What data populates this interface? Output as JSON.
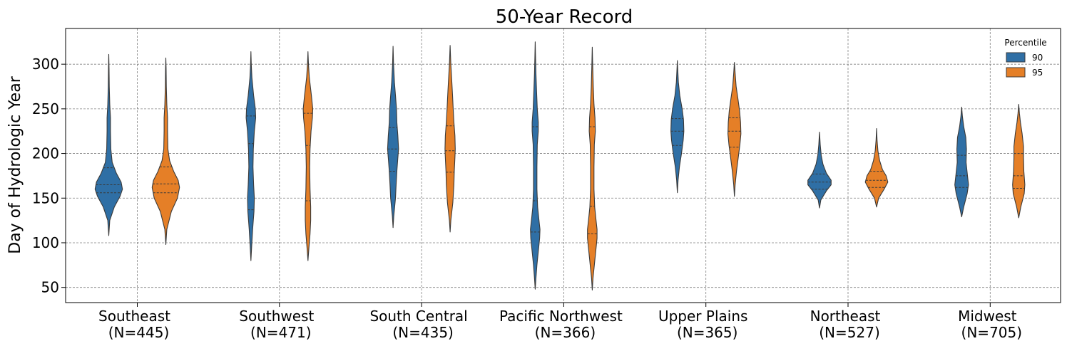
{
  "chart_data": {
    "type": "violin",
    "title": "50-Year Record",
    "xlabel": "",
    "ylabel": "Day of Hydrologic Year",
    "ylim": [
      33,
      340
    ],
    "yticks": [
      50,
      100,
      150,
      200,
      250,
      300
    ],
    "grid": true,
    "legend": {
      "title": "Percentile",
      "placement": "top-right",
      "entries": [
        {
          "label": "90",
          "color": "#2f6fa5"
        },
        {
          "label": "95",
          "color": "#e57f27"
        }
      ]
    },
    "categories": [
      {
        "name": "Southeast",
        "n": "(N=445)"
      },
      {
        "name": "Southwest",
        "n": "(N=471)"
      },
      {
        "name": "South Central",
        "n": "(N=435)"
      },
      {
        "name": "Pacific Northwest",
        "n": "(N=366)"
      },
      {
        "name": "Upper Plains",
        "n": "(N=365)"
      },
      {
        "name": "Northeast",
        "n": "(N=527)"
      },
      {
        "name": "Midwest",
        "n": "(N=705)"
      }
    ],
    "series": [
      {
        "name": "90",
        "color": "#2f6fa5",
        "violins": [
          {
            "min": 108,
            "max": 311,
            "quartiles": [
              156,
              165,
              184
            ],
            "profile": [
              [
                108,
                0
              ],
              [
                125,
                0.03
              ],
              [
                140,
                0.16
              ],
              [
                152,
                0.33
              ],
              [
                160,
                0.4
              ],
              [
                168,
                0.36
              ],
              [
                178,
                0.22
              ],
              [
                190,
                0.1
              ],
              [
                205,
                0.06
              ],
              [
                225,
                0.05
              ],
              [
                240,
                0.05
              ],
              [
                255,
                0.03
              ],
              [
                275,
                0.015
              ],
              [
                295,
                0.008
              ],
              [
                311,
                0
              ]
            ]
          },
          {
            "min": 80,
            "max": 314,
            "quartiles": [
              137,
              211,
              242
            ],
            "profile": [
              [
                80,
                0
              ],
              [
                95,
                0.02
              ],
              [
                115,
                0.05
              ],
              [
                135,
                0.09
              ],
              [
                150,
                0.1
              ],
              [
                165,
                0.08
              ],
              [
                185,
                0.06
              ],
              [
                205,
                0.07
              ],
              [
                225,
                0.1
              ],
              [
                240,
                0.14
              ],
              [
                250,
                0.13
              ],
              [
                265,
                0.08
              ],
              [
                285,
                0.03
              ],
              [
                300,
                0.01
              ],
              [
                314,
                0
              ]
            ]
          },
          {
            "min": 117,
            "max": 320,
            "quartiles": [
              180,
              205,
              229
            ],
            "profile": [
              [
                117,
                0
              ],
              [
                130,
                0.02
              ],
              [
                150,
                0.07
              ],
              [
                165,
                0.09
              ],
              [
                180,
                0.11
              ],
              [
                195,
                0.14
              ],
              [
                205,
                0.16
              ],
              [
                220,
                0.14
              ],
              [
                235,
                0.11
              ],
              [
                250,
                0.1
              ],
              [
                265,
                0.07
              ],
              [
                280,
                0.04
              ],
              [
                300,
                0.015
              ],
              [
                320,
                0
              ]
            ]
          },
          {
            "min": 48,
            "max": 325,
            "quartiles": [
              112,
              147,
              230
            ],
            "profile": [
              [
                48,
                0
              ],
              [
                60,
                0.02
              ],
              [
                75,
                0.05
              ],
              [
                90,
                0.09
              ],
              [
                105,
                0.13
              ],
              [
                115,
                0.14
              ],
              [
                125,
                0.11
              ],
              [
                140,
                0.07
              ],
              [
                160,
                0.05
              ],
              [
                185,
                0.05
              ],
              [
                210,
                0.06
              ],
              [
                225,
                0.09
              ],
              [
                235,
                0.09
              ],
              [
                250,
                0.06
              ],
              [
                270,
                0.04
              ],
              [
                290,
                0.02
              ],
              [
                310,
                0.008
              ],
              [
                325,
                0
              ]
            ]
          },
          {
            "min": 156,
            "max": 304,
            "quartiles": [
              209,
              225,
              239
            ],
            "profile": [
              [
                156,
                0
              ],
              [
                170,
                0.02
              ],
              [
                185,
                0.06
              ],
              [
                200,
                0.12
              ],
              [
                215,
                0.17
              ],
              [
                225,
                0.19
              ],
              [
                238,
                0.18
              ],
              [
                250,
                0.14
              ],
              [
                265,
                0.07
              ],
              [
                280,
                0.03
              ],
              [
                295,
                0.01
              ],
              [
                304,
                0
              ]
            ]
          },
          {
            "min": 139,
            "max": 224,
            "quartiles": [
              160,
              168,
              177
            ],
            "profile": [
              [
                139,
                0
              ],
              [
                148,
                0.04
              ],
              [
                158,
                0.2
              ],
              [
                165,
                0.34
              ],
              [
                170,
                0.34
              ],
              [
                178,
                0.2
              ],
              [
                188,
                0.1
              ],
              [
                198,
                0.05
              ],
              [
                210,
                0.02
              ],
              [
                224,
                0
              ]
            ]
          },
          {
            "min": 129,
            "max": 252,
            "quartiles": [
              162,
              175,
              198
            ],
            "profile": [
              [
                129,
                0
              ],
              [
                140,
                0.06
              ],
              [
                155,
                0.16
              ],
              [
                165,
                0.2
              ],
              [
                175,
                0.17
              ],
              [
                190,
                0.13
              ],
              [
                205,
                0.14
              ],
              [
                218,
                0.12
              ],
              [
                230,
                0.06
              ],
              [
                242,
                0.02
              ],
              [
                252,
                0
              ]
            ]
          }
        ]
      },
      {
        "name": "95",
        "color": "#e57f27",
        "violins": [
          {
            "min": 98,
            "max": 307,
            "quartiles": [
              156,
              166,
              185
            ],
            "profile": [
              [
                98,
                0
              ],
              [
                115,
                0.03
              ],
              [
                135,
                0.16
              ],
              [
                150,
                0.34
              ],
              [
                162,
                0.4
              ],
              [
                170,
                0.36
              ],
              [
                180,
                0.23
              ],
              [
                192,
                0.11
              ],
              [
                205,
                0.06
              ],
              [
                225,
                0.05
              ],
              [
                240,
                0.05
              ],
              [
                255,
                0.03
              ],
              [
                275,
                0.015
              ],
              [
                295,
                0.008
              ],
              [
                307,
                0
              ]
            ]
          },
          {
            "min": 80,
            "max": 314,
            "quartiles": [
              147,
              209,
              245
            ],
            "profile": [
              [
                80,
                0
              ],
              [
                95,
                0.03
              ],
              [
                110,
                0.06
              ],
              [
                125,
                0.08
              ],
              [
                140,
                0.08
              ],
              [
                160,
                0.06
              ],
              [
                185,
                0.05
              ],
              [
                205,
                0.06
              ],
              [
                225,
                0.09
              ],
              [
                240,
                0.13
              ],
              [
                250,
                0.14
              ],
              [
                265,
                0.1
              ],
              [
                285,
                0.04
              ],
              [
                300,
                0.015
              ],
              [
                314,
                0
              ]
            ]
          },
          {
            "min": 112,
            "max": 321,
            "quartiles": [
              179,
              203,
              231
            ],
            "profile": [
              [
                112,
                0
              ],
              [
                125,
                0.02
              ],
              [
                145,
                0.08
              ],
              [
                165,
                0.11
              ],
              [
                180,
                0.12
              ],
              [
                195,
                0.14
              ],
              [
                205,
                0.15
              ],
              [
                220,
                0.14
              ],
              [
                235,
                0.11
              ],
              [
                250,
                0.09
              ],
              [
                265,
                0.07
              ],
              [
                280,
                0.05
              ],
              [
                300,
                0.02
              ],
              [
                321,
                0
              ]
            ]
          },
          {
            "min": 47,
            "max": 319,
            "quartiles": [
              110,
              141,
              230
            ],
            "profile": [
              [
                47,
                0
              ],
              [
                60,
                0.02
              ],
              [
                75,
                0.06
              ],
              [
                90,
                0.1
              ],
              [
                105,
                0.14
              ],
              [
                115,
                0.14
              ],
              [
                125,
                0.11
              ],
              [
                140,
                0.07
              ],
              [
                160,
                0.05
              ],
              [
                185,
                0.05
              ],
              [
                210,
                0.06
              ],
              [
                225,
                0.09
              ],
              [
                240,
                0.08
              ],
              [
                255,
                0.05
              ],
              [
                275,
                0.03
              ],
              [
                295,
                0.015
              ],
              [
                319,
                0
              ]
            ]
          },
          {
            "min": 152,
            "max": 302,
            "quartiles": [
              207,
              225,
              240
            ],
            "profile": [
              [
                152,
                0
              ],
              [
                165,
                0.02
              ],
              [
                180,
                0.06
              ],
              [
                195,
                0.11
              ],
              [
                210,
                0.16
              ],
              [
                222,
                0.19
              ],
              [
                235,
                0.18
              ],
              [
                248,
                0.15
              ],
              [
                262,
                0.1
              ],
              [
                275,
                0.05
              ],
              [
                290,
                0.02
              ],
              [
                302,
                0
              ]
            ]
          },
          {
            "min": 140,
            "max": 228,
            "quartiles": [
              162,
              170,
              180
            ],
            "profile": [
              [
                140,
                0
              ],
              [
                150,
                0.06
              ],
              [
                160,
                0.22
              ],
              [
                168,
                0.33
              ],
              [
                175,
                0.28
              ],
              [
                182,
                0.17
              ],
              [
                192,
                0.09
              ],
              [
                203,
                0.04
              ],
              [
                215,
                0.015
              ],
              [
                228,
                0
              ]
            ]
          },
          {
            "min": 128,
            "max": 255,
            "quartiles": [
              161,
              175,
              200
            ],
            "profile": [
              [
                128,
                0
              ],
              [
                140,
                0.06
              ],
              [
                155,
                0.16
              ],
              [
                165,
                0.18
              ],
              [
                180,
                0.15
              ],
              [
                195,
                0.14
              ],
              [
                208,
                0.14
              ],
              [
                222,
                0.1
              ],
              [
                235,
                0.05
              ],
              [
                245,
                0.02
              ],
              [
                255,
                0
              ]
            ]
          }
        ]
      }
    ]
  }
}
